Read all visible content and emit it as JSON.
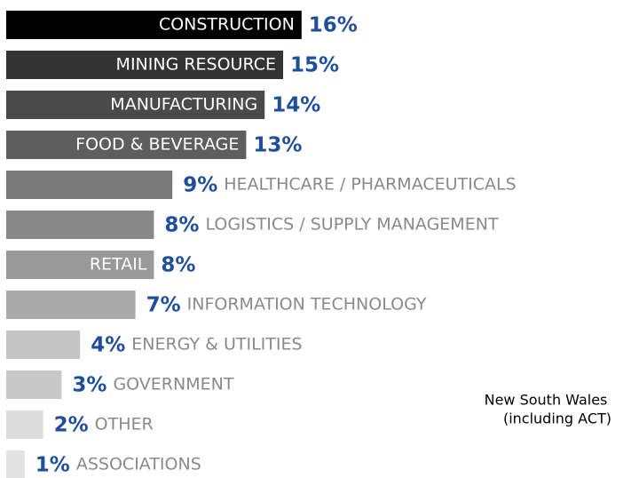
{
  "chart_data": {
    "type": "bar",
    "orientation": "horizontal",
    "categories": [
      "CONSTRUCTION",
      "MINING RESOURCE",
      "MANUFACTURING",
      "FOOD & BEVERAGE",
      "HEALTHCARE / PHARMACEUTICALS",
      "LOGISTICS / SUPPLY MANAGEMENT",
      "RETAIL",
      "INFORMATION TECHNOLOGY",
      "ENERGY & UTILITIES",
      "GOVERNMENT",
      "OTHER",
      "ASSOCIATIONS"
    ],
    "values": [
      16,
      15,
      14,
      13,
      9,
      8,
      8,
      7,
      4,
      3,
      2,
      1
    ],
    "value_labels": [
      "16%",
      "15%",
      "14%",
      "13%",
      "9%",
      "8%",
      "8%",
      "7%",
      "4%",
      "3%",
      "2%",
      "1%"
    ],
    "colors": [
      "#000000",
      "#333333",
      "#4a4a4a",
      "#5e5e5e",
      "#7a7a7a",
      "#888888",
      "#999999",
      "#aaaaaa",
      "#c4c4c4",
      "#c8c8c8",
      "#dcdcdc",
      "#e2e2e2"
    ],
    "value_label_color": "#1f4e9c",
    "annotation": [
      "New South Wales",
      "(including ACT)"
    ]
  }
}
